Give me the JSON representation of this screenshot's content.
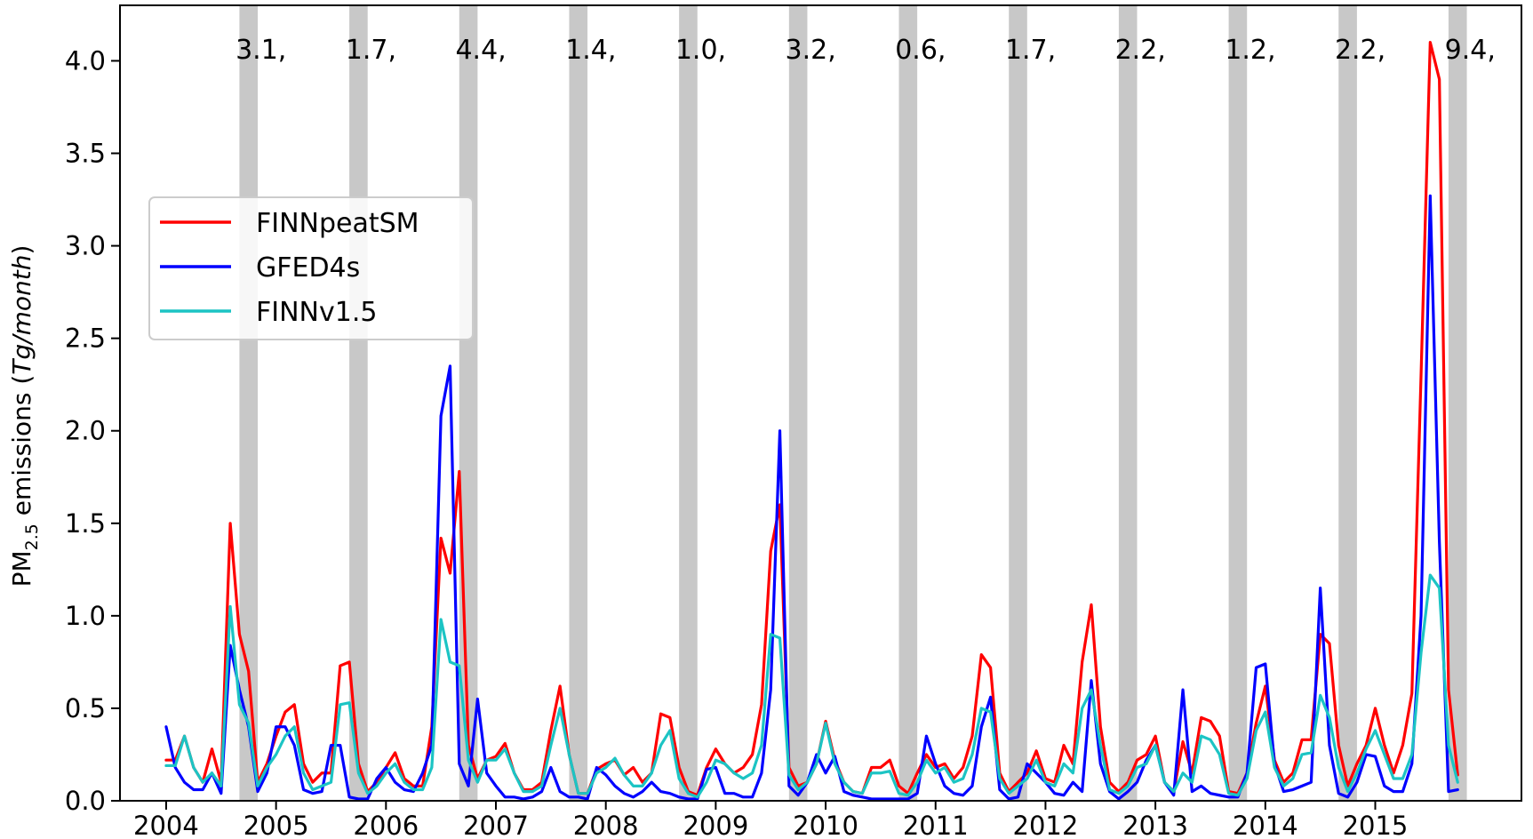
{
  "chart_data": {
    "type": "line",
    "ylabel_main": "PM",
    "ylabel_sub": "2.5",
    "ylabel_rest": " emissions (",
    "ylabel_unit": "Tg/month",
    "ylabel_close": ")",
    "ylim": [
      0,
      4.3
    ],
    "xlim": [
      2003.58,
      2016.33
    ],
    "y_ticks": [
      "0.0",
      "0.5",
      "1.0",
      "1.5",
      "2.0",
      "2.5",
      "3.0",
      "3.5",
      "4.0"
    ],
    "x_ticks": [
      "2004",
      "2005",
      "2006",
      "2007",
      "2008",
      "2009",
      "2010",
      "2011",
      "2012",
      "2013",
      "2014",
      "2015"
    ],
    "legend_position": "upper-left",
    "shaded_months": "Sep–Oct of each year (2004–2015)",
    "annotations": [
      "3.1,",
      "1.7,",
      "4.4,",
      "1.4,",
      "1.0,",
      "3.2,",
      "0.6,",
      "1.7,",
      "2.2,",
      "1.2,",
      "2.2,",
      "9.4,"
    ],
    "colors": {
      "shade": "#c8c8c8"
    },
    "series": [
      {
        "name": "FINNpeatSM",
        "color": "#ff0000",
        "values": [
          0.22,
          0.22,
          0.35,
          0.18,
          0.1,
          0.28,
          0.1,
          1.5,
          0.9,
          0.7,
          0.1,
          0.2,
          0.35,
          0.48,
          0.52,
          0.2,
          0.1,
          0.15,
          0.15,
          0.73,
          0.75,
          0.2,
          0.05,
          0.1,
          0.18,
          0.26,
          0.12,
          0.08,
          0.08,
          0.4,
          1.42,
          1.23,
          1.78,
          0.3,
          0.12,
          0.22,
          0.24,
          0.31,
          0.15,
          0.06,
          0.06,
          0.1,
          0.38,
          0.62,
          0.25,
          0.04,
          0.04,
          0.17,
          0.2,
          0.22,
          0.14,
          0.18,
          0.1,
          0.15,
          0.47,
          0.45,
          0.18,
          0.05,
          0.03,
          0.18,
          0.28,
          0.2,
          0.15,
          0.18,
          0.25,
          0.52,
          1.35,
          1.6,
          0.18,
          0.08,
          0.1,
          0.2,
          0.43,
          0.22,
          0.1,
          0.05,
          0.04,
          0.18,
          0.18,
          0.22,
          0.08,
          0.04,
          0.15,
          0.25,
          0.18,
          0.2,
          0.12,
          0.18,
          0.35,
          0.79,
          0.72,
          0.15,
          0.05,
          0.1,
          0.15,
          0.27,
          0.12,
          0.1,
          0.3,
          0.2,
          0.75,
          1.06,
          0.4,
          0.1,
          0.05,
          0.1,
          0.22,
          0.25,
          0.35,
          0.1,
          0.05,
          0.32,
          0.15,
          0.45,
          0.43,
          0.35,
          0.05,
          0.04,
          0.15,
          0.42,
          0.62,
          0.22,
          0.1,
          0.15,
          0.33,
          0.33,
          0.9,
          0.85,
          0.3,
          0.08,
          0.2,
          0.3,
          0.5,
          0.3,
          0.15,
          0.3,
          0.58,
          2.3,
          4.1,
          3.9,
          0.6,
          0.14
        ]
      },
      {
        "name": "GFED4s",
        "color": "#0000ff",
        "values": [
          0.4,
          0.18,
          0.1,
          0.06,
          0.06,
          0.15,
          0.04,
          0.84,
          0.6,
          0.4,
          0.05,
          0.15,
          0.4,
          0.4,
          0.3,
          0.06,
          0.04,
          0.05,
          0.3,
          0.3,
          0.02,
          0.01,
          0.01,
          0.12,
          0.18,
          0.1,
          0.06,
          0.05,
          0.15,
          0.3,
          2.08,
          2.35,
          0.2,
          0.08,
          0.55,
          0.15,
          0.08,
          0.02,
          0.02,
          0.01,
          0.02,
          0.05,
          0.18,
          0.05,
          0.02,
          0.02,
          0.01,
          0.18,
          0.14,
          0.08,
          0.04,
          0.02,
          0.05,
          0.1,
          0.05,
          0.04,
          0.02,
          0.01,
          0.01,
          0.17,
          0.18,
          0.04,
          0.04,
          0.02,
          0.02,
          0.15,
          0.6,
          2.0,
          0.08,
          0.03,
          0.1,
          0.25,
          0.15,
          0.24,
          0.05,
          0.03,
          0.02,
          0.01,
          0.01,
          0.01,
          0.01,
          0.01,
          0.04,
          0.35,
          0.2,
          0.08,
          0.04,
          0.03,
          0.08,
          0.4,
          0.56,
          0.06,
          0.01,
          0.02,
          0.2,
          0.15,
          0.1,
          0.04,
          0.03,
          0.1,
          0.05,
          0.65,
          0.2,
          0.05,
          0.01,
          0.05,
          0.1,
          0.22,
          0.3,
          0.1,
          0.03,
          0.6,
          0.05,
          0.08,
          0.04,
          0.03,
          0.02,
          0.02,
          0.15,
          0.72,
          0.74,
          0.2,
          0.05,
          0.06,
          0.08,
          0.1,
          1.15,
          0.3,
          0.04,
          0.02,
          0.1,
          0.25,
          0.24,
          0.08,
          0.05,
          0.05,
          0.2,
          1.0,
          3.27,
          1.4,
          0.05,
          0.06
        ]
      },
      {
        "name": "FINNv1.5",
        "color": "#1cc4c4",
        "values": [
          0.19,
          0.19,
          0.35,
          0.18,
          0.1,
          0.15,
          0.08,
          1.05,
          0.52,
          0.42,
          0.08,
          0.18,
          0.25,
          0.35,
          0.4,
          0.15,
          0.06,
          0.08,
          0.1,
          0.52,
          0.53,
          0.15,
          0.04,
          0.08,
          0.15,
          0.2,
          0.1,
          0.06,
          0.06,
          0.18,
          0.98,
          0.75,
          0.73,
          0.22,
          0.1,
          0.22,
          0.22,
          0.28,
          0.15,
          0.05,
          0.05,
          0.08,
          0.3,
          0.5,
          0.25,
          0.04,
          0.04,
          0.15,
          0.18,
          0.23,
          0.14,
          0.08,
          0.08,
          0.15,
          0.3,
          0.38,
          0.12,
          0.04,
          0.02,
          0.1,
          0.22,
          0.2,
          0.15,
          0.12,
          0.15,
          0.3,
          0.9,
          0.88,
          0.14,
          0.06,
          0.1,
          0.2,
          0.42,
          0.2,
          0.1,
          0.05,
          0.04,
          0.15,
          0.15,
          0.16,
          0.04,
          0.03,
          0.1,
          0.22,
          0.15,
          0.18,
          0.1,
          0.12,
          0.25,
          0.5,
          0.48,
          0.12,
          0.04,
          0.08,
          0.12,
          0.22,
          0.1,
          0.08,
          0.2,
          0.15,
          0.5,
          0.6,
          0.3,
          0.06,
          0.04,
          0.08,
          0.18,
          0.2,
          0.3,
          0.1,
          0.05,
          0.15,
          0.1,
          0.35,
          0.33,
          0.25,
          0.04,
          0.03,
          0.12,
          0.38,
          0.48,
          0.18,
          0.08,
          0.12,
          0.25,
          0.26,
          0.57,
          0.45,
          0.18,
          0.05,
          0.15,
          0.28,
          0.38,
          0.25,
          0.12,
          0.12,
          0.25,
          0.8,
          1.22,
          1.15,
          0.3,
          0.1
        ]
      }
    ]
  }
}
